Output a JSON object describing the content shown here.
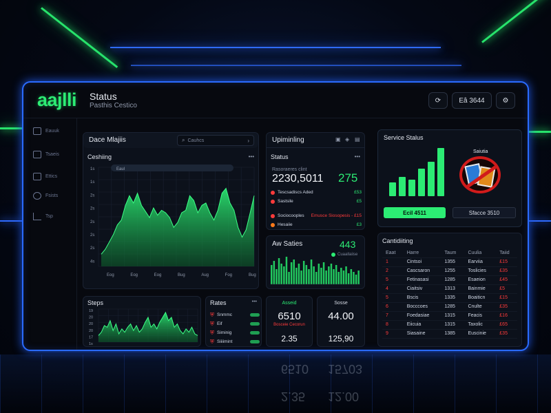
{
  "header": {
    "logo": "aajlli",
    "title": "Status",
    "subtitle": "Pasthis Cestico",
    "button_count": "Eâ 3644"
  },
  "sidebar": {
    "items": [
      {
        "label": "Eauuk",
        "icon": "home-icon"
      },
      {
        "label": "Tsaeis",
        "icon": "table-icon"
      },
      {
        "label": "Ettics",
        "icon": "sliders-icon"
      },
      {
        "label": "Fsists",
        "icon": "globe-icon"
      },
      {
        "label": "Tsp",
        "icon": "bar-chart-icon"
      }
    ]
  },
  "main_chart": {
    "header": "Dace Mlajiis",
    "search_placeholder": "Cauhcs",
    "title": "Ceshiing",
    "pill": "Eaul",
    "ticks_y": [
      "1s",
      "1s",
      "2s",
      "2s",
      "2s",
      "2s",
      "2s",
      "4s"
    ],
    "ticks_x": [
      "Eog",
      "Eog",
      "Eog",
      "Bug",
      "Aug",
      "Fog",
      "Bug"
    ],
    "values": [
      10,
      14,
      20,
      26,
      34,
      38,
      50,
      58,
      52,
      60,
      50,
      45,
      40,
      48,
      42,
      46,
      44,
      40,
      32,
      36,
      44,
      46,
      58,
      54,
      44,
      50,
      52,
      44,
      38,
      46,
      60,
      64,
      52,
      46,
      32,
      24,
      30,
      44,
      58
    ]
  },
  "upcoming": {
    "header": "Upiminling",
    "status_title": "Status",
    "sub_label": "Rasoraeres clint",
    "big_number": "2230,5011",
    "big_value": "275",
    "rows": [
      {
        "label": "Tescsadiscs Aded",
        "value": "£53",
        "color": "#ff3b3b",
        "value_color": "#2cec74"
      },
      {
        "label": "Sastsile",
        "value": "£5",
        "color": "#ff3b3b",
        "value_color": "#2cec74"
      },
      {
        "label": "Sociocooples",
        "value": "Emusce Siosopesis - £15",
        "color": "#ff3b3b",
        "value_color": "#ff3b3b"
      },
      {
        "label": "Hesaiie",
        "value": "£3",
        "color": "#ff7a1a",
        "value_color": "#2cec74"
      }
    ]
  },
  "aw_series": {
    "title": "Aw Saties",
    "value": "443",
    "legend": "Cuaallaiise",
    "bars": [
      28,
      34,
      22,
      38,
      30,
      26,
      40,
      18,
      32,
      36,
      24,
      30,
      20,
      34,
      28,
      22,
      36,
      26,
      18,
      30,
      24,
      32,
      20,
      26,
      30,
      22,
      28,
      18,
      24,
      20,
      26,
      16,
      22,
      18,
      14,
      20
    ]
  },
  "steps": {
    "title": "Steps",
    "ticks_y": [
      "19",
      "20",
      "20",
      "20",
      "17",
      "1s"
    ],
    "values": [
      8,
      12,
      20,
      18,
      26,
      14,
      22,
      10,
      16,
      12,
      18,
      22,
      14,
      20,
      12,
      16,
      24,
      30,
      18,
      22,
      16,
      24,
      30,
      36,
      26,
      30,
      18,
      22,
      14,
      10,
      16,
      12,
      18,
      10,
      8
    ]
  },
  "rates": {
    "title": "Rates",
    "items": [
      {
        "label": "Snmmc",
        "icon": "shield-icon"
      },
      {
        "label": "Eif",
        "icon": "shield-icon"
      },
      {
        "label": "Siminig",
        "icon": "shield-icon"
      },
      {
        "label": "Siiiimint",
        "icon": "shield-icon"
      }
    ]
  },
  "kpi": [
    {
      "label": "Asseid",
      "value": "6510",
      "sub": "Bosceie Cecorun",
      "footer": "2.35"
    },
    {
      "label": "Sosse",
      "value": "44.00",
      "sub": "",
      "footer": "125,90"
    }
  ],
  "service_status": {
    "title": "Service Stalus",
    "badge_title": "Saiutia",
    "bars": [
      20,
      28,
      24,
      40,
      50,
      70
    ],
    "btn_primary": "Ecil 4511",
    "btn_secondary": "Sfacce 3510"
  },
  "table": {
    "title": "Cantidiiting",
    "columns": [
      "Eaat",
      "Harre",
      "Taum",
      "Cuulia",
      "Taiid"
    ],
    "rows": [
      [
        "1",
        "Cintsoi",
        "1355",
        "Earviia",
        "£15"
      ],
      [
        "2",
        "Cascsaron",
        "1255",
        "Toslicies",
        "£35"
      ],
      [
        "5",
        "Fetinasasi",
        "1285",
        "Esaeion",
        "£45"
      ],
      [
        "4",
        "Ciaitsiv",
        "1313",
        "Bainmie",
        "£5"
      ],
      [
        "5",
        "Bscis",
        "1335",
        "Boaiticn",
        "£15"
      ],
      [
        "6",
        "Bocccoes",
        "1285",
        "Cnulte",
        "£35"
      ],
      [
        "7",
        "Foedasiae",
        "1315",
        "Feacis",
        "£16"
      ],
      [
        "8",
        "Eiicuia",
        "1315",
        "Taxolic",
        "£65"
      ],
      [
        "9",
        "Siasaine",
        "1385",
        "Euscinie",
        "£35"
      ]
    ]
  },
  "reflection": [
    "6510",
    "15703",
    "2.35",
    "12.00"
  ],
  "colors": {
    "accent_green": "#2cec74",
    "accent_blue": "#2a6bff",
    "alert_red": "#ff3b3b"
  }
}
